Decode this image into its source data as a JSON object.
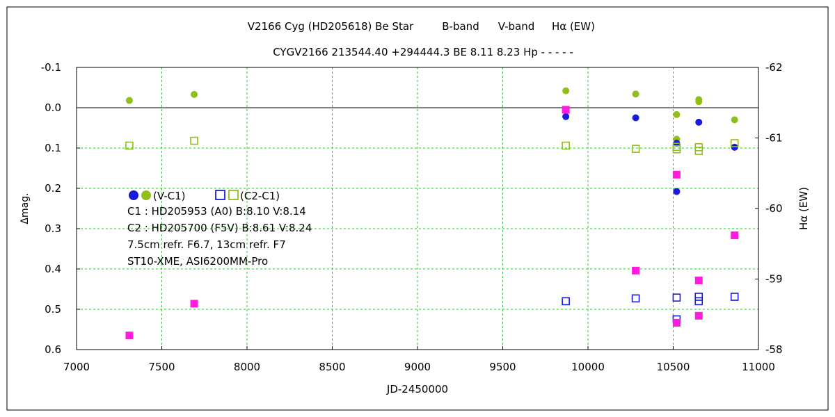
{
  "chart_data": {
    "type": "scatter",
    "title": "V2166 Cyg (HD205618)    Be Star",
    "title_bands": [
      {
        "label": "B-band",
        "color": "#1a1adc"
      },
      {
        "label": "V-band",
        "color": "#8fbf1a"
      },
      {
        "label": "Hα (EW)",
        "color": "#e818e0"
      }
    ],
    "subtitle": "CYGV2166  213544.40  +294444.3  BE  8.11  8.23  Hp - - - - -",
    "xlabel": "JD-2450000",
    "ylabel": "Δmag.",
    "y2label": "Hα (EW)",
    "xlim": [
      7000,
      11000
    ],
    "ylim": [
      -0.1,
      0.6
    ],
    "y2lim": [
      -62,
      -58
    ],
    "y_reversed": true,
    "xticks": [
      "7000",
      "7500",
      "8000",
      "8500",
      "9000",
      "9500",
      "10000",
      "10500",
      "11000"
    ],
    "yticks": [
      "-0.1",
      "0.0",
      "0.1",
      "0.2",
      "0.3",
      "0.4",
      "0.5",
      "0.6"
    ],
    "y2ticks": [
      "-62",
      "-61",
      "-60",
      "-59",
      "-58"
    ],
    "grid": true,
    "legend": {
      "circles_label": "(V-C1)",
      "squares_label": "(C2-C1)",
      "lines": [
        "C1 : HD205953 (A0)  B:8.10  V:8.14",
        "C2 : HD205700 (F5V)  B:8.61  V:8.24",
        "7.5cm refr. F6.7,  13cm refr. F7",
        "ST10-XME,  ASI6200MM-Pro"
      ]
    },
    "colors": {
      "b": "#1a1adc",
      "v": "#8fbf1a",
      "ha": "#ff1cdc",
      "grid": "#22cc22"
    },
    "series": [
      {
        "key": "v_var",
        "axis": "left",
        "marker": "circle",
        "color": "v",
        "x": [
          7310,
          7690,
          9870,
          10280,
          10520,
          10520,
          10650,
          10650,
          10860
        ],
        "y": [
          -0.018,
          -0.033,
          -0.042,
          -0.034,
          0.017,
          0.078,
          -0.02,
          -0.015,
          0.03
        ]
      },
      {
        "key": "b_var",
        "axis": "left",
        "marker": "circle",
        "color": "b",
        "x": [
          9870,
          10280,
          10520,
          10520,
          10650,
          10860
        ],
        "y": [
          0.022,
          0.025,
          0.088,
          0.208,
          0.036,
          0.098
        ]
      },
      {
        "key": "v_comp",
        "axis": "left",
        "marker": "square",
        "color": "v",
        "x": [
          7310,
          7690,
          9870,
          10280,
          10520,
          10520,
          10650,
          10650,
          10860
        ],
        "y": [
          0.094,
          0.082,
          0.094,
          0.102,
          0.097,
          0.103,
          0.098,
          0.107,
          0.088
        ]
      },
      {
        "key": "b_comp",
        "axis": "left",
        "marker": "square",
        "color": "b",
        "x": [
          9870,
          10280,
          10520,
          10520,
          10650,
          10650,
          10860
        ],
        "y": [
          0.48,
          0.473,
          0.471,
          0.525,
          0.469,
          0.48,
          0.469
        ]
      },
      {
        "key": "ha",
        "axis": "right",
        "marker": "filled-square",
        "color": "ha",
        "x": [
          7310,
          7690,
          9870,
          10280,
          10520,
          10520,
          10650,
          10650,
          10860
        ],
        "y": [
          -58.2,
          -58.65,
          -61.4,
          -59.12,
          -60.48,
          -58.38,
          -58.98,
          -58.48,
          -59.62
        ]
      }
    ]
  }
}
